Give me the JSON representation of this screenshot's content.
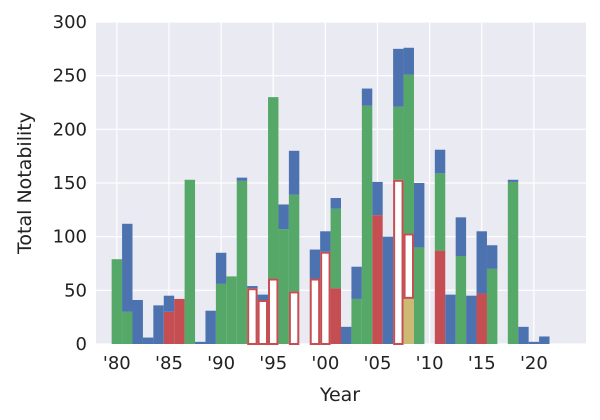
{
  "chart_data": {
    "type": "bar",
    "subtype": "stacked-histogram",
    "xlabel": "Year",
    "ylabel": "Total Notability",
    "xlim": [
      1978,
      2025
    ],
    "ylim": [
      0,
      300
    ],
    "grid": true,
    "x_ticks": [
      {
        "value": 1980,
        "label": "'80"
      },
      {
        "value": 1985,
        "label": "'85"
      },
      {
        "value": 1990,
        "label": "'90"
      },
      {
        "value": 1995,
        "label": "'95"
      },
      {
        "value": 2000,
        "label": "'00"
      },
      {
        "value": 2005,
        "label": "'05"
      },
      {
        "value": 2010,
        "label": "'10"
      },
      {
        "value": 2015,
        "label": "'15"
      },
      {
        "value": 2020,
        "label": "'20"
      }
    ],
    "y_ticks": [
      0,
      50,
      100,
      150,
      200,
      250,
      300
    ],
    "colors": {
      "blue": "#4c72b0",
      "green": "#55a868",
      "red": "#c44e52",
      "white": "#ffffff",
      "tan": "#ccb974",
      "red_edge": "#c44e52",
      "plot_bg": "#eaeaf2",
      "grid": "#ffffff"
    },
    "series_order": [
      "tan",
      "white",
      "red",
      "green",
      "blue"
    ],
    "years": [
      1980,
      1981,
      1982,
      1983,
      1984,
      1985,
      1986,
      1987,
      1988,
      1989,
      1990,
      1991,
      1992,
      1993,
      1994,
      1995,
      1996,
      1997,
      1998,
      1999,
      2000,
      2001,
      2002,
      2003,
      2004,
      2005,
      2006,
      2007,
      2008,
      2009,
      2010,
      2011,
      2012,
      2013,
      2014,
      2015,
      2016,
      2017,
      2018,
      2019,
      2020,
      2021
    ],
    "series": [
      {
        "color": "tan",
        "values": [
          0,
          0,
          0,
          0,
          0,
          0,
          0,
          0,
          0,
          0,
          0,
          0,
          0,
          0,
          0,
          0,
          0,
          0,
          0,
          0,
          0,
          0,
          0,
          0,
          0,
          0,
          0,
          0,
          43,
          0,
          0,
          0,
          0,
          0,
          0,
          0,
          0,
          0,
          0,
          0,
          0,
          0
        ]
      },
      {
        "color": "white",
        "values": [
          0,
          0,
          0,
          0,
          0,
          0,
          0,
          0,
          0,
          0,
          0,
          0,
          0,
          52,
          41,
          61,
          0,
          49,
          0,
          61,
          86,
          0,
          0,
          0,
          0,
          0,
          0,
          153,
          60,
          0,
          0,
          0,
          0,
          0,
          0,
          0,
          0,
          0,
          0,
          0,
          0,
          0
        ]
      },
      {
        "color": "red",
        "values": [
          0,
          0,
          0,
          0,
          0,
          30,
          42,
          0,
          0,
          0,
          0,
          0,
          0,
          0,
          0,
          0,
          0,
          0,
          0,
          0,
          0,
          52,
          0,
          0,
          0,
          120,
          0,
          0,
          0,
          0,
          0,
          87,
          0,
          0,
          0,
          47,
          0,
          0,
          0,
          0,
          0,
          0
        ]
      },
      {
        "color": "green",
        "values": [
          79,
          30,
          0,
          0,
          0,
          0,
          0,
          153,
          0,
          0,
          56,
          63,
          152,
          0,
          0,
          169,
          107,
          90,
          0,
          0,
          0,
          74,
          0,
          42,
          222,
          0,
          0,
          68,
          148,
          90,
          0,
          72,
          0,
          82,
          0,
          0,
          70,
          0,
          151,
          0,
          0,
          0
        ]
      },
      {
        "color": "blue",
        "values": [
          0,
          82,
          41,
          6,
          36,
          15,
          0,
          0,
          2,
          31,
          29,
          0,
          3,
          2,
          5,
          0,
          23,
          41,
          0,
          27,
          19,
          10,
          16,
          30,
          16,
          31,
          100,
          54,
          25,
          60,
          0,
          22,
          46,
          36,
          45,
          58,
          22,
          0,
          2,
          16,
          2,
          7
        ]
      }
    ]
  }
}
